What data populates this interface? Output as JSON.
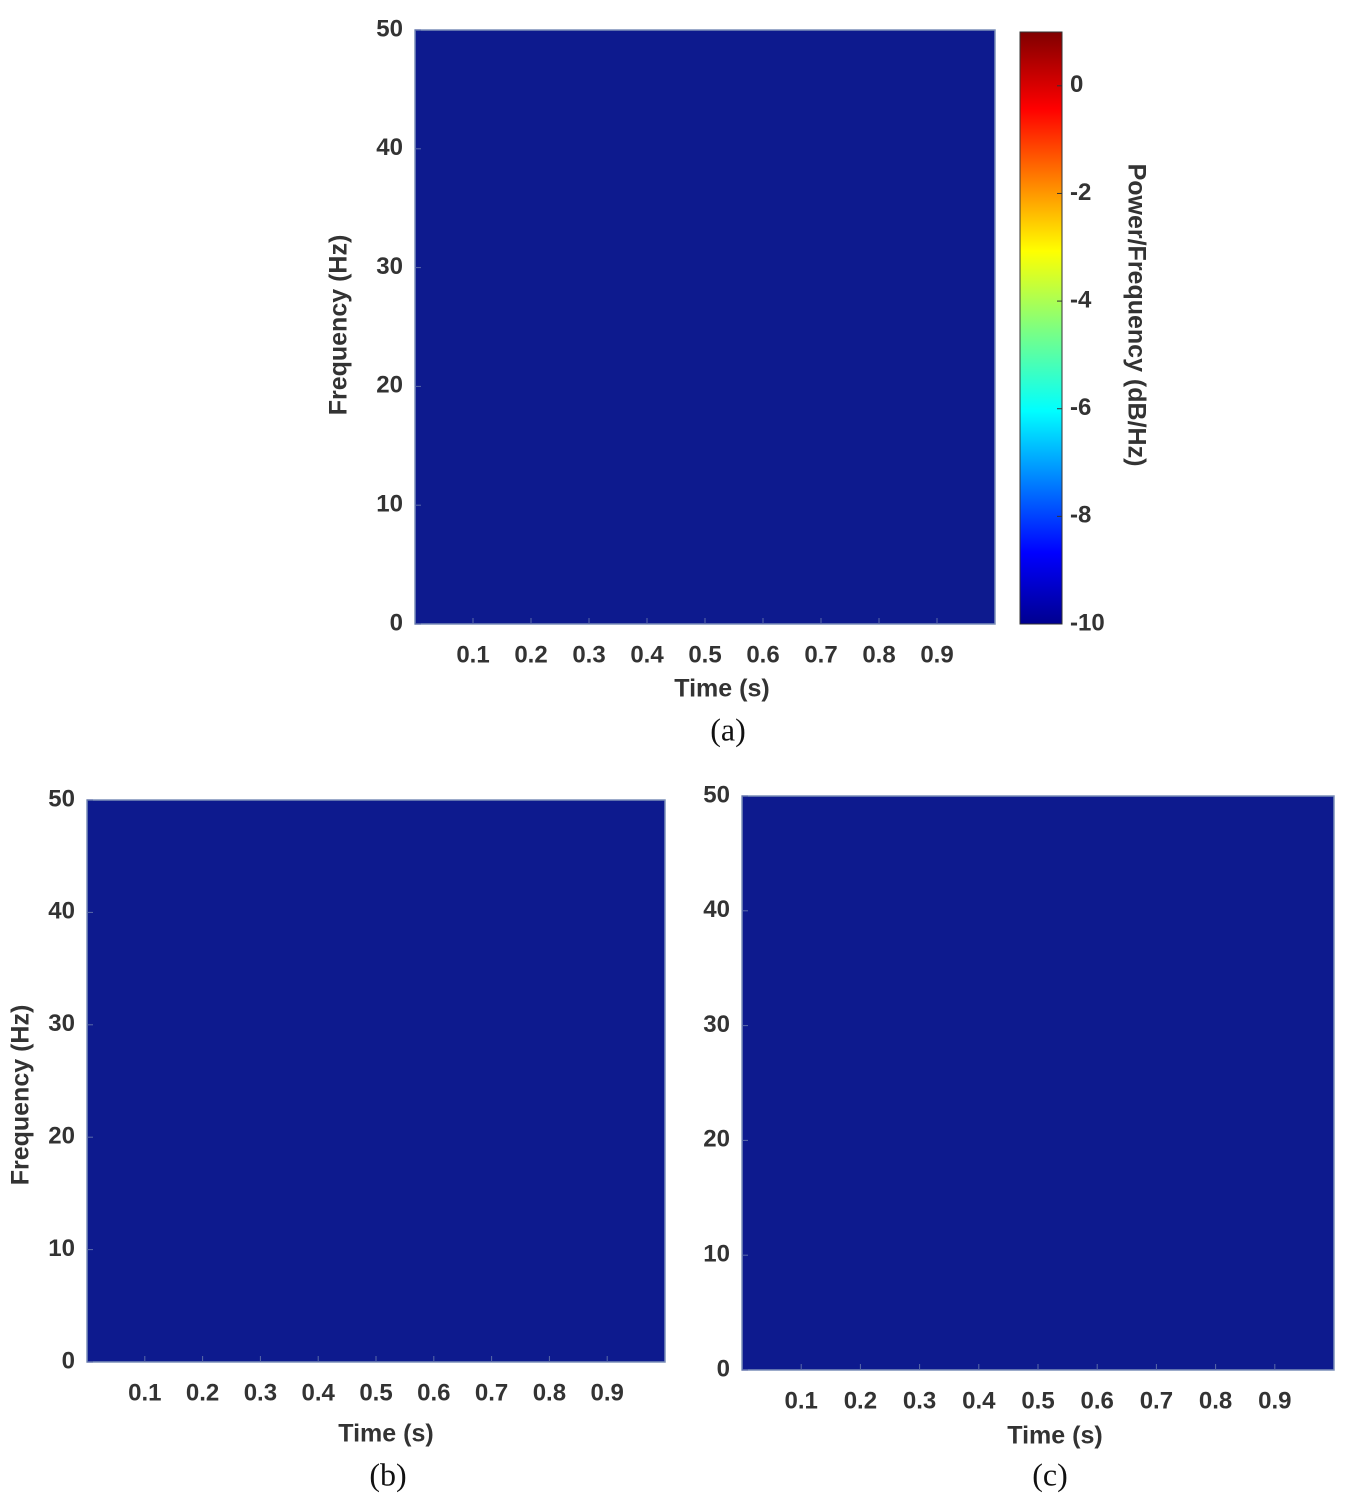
{
  "chart_data": [
    {
      "type": "spectrogram",
      "caption": "(a)",
      "xlabel": "Time (s)",
      "ylabel": "Frequency (Hz)",
      "xlim": [
        0,
        1
      ],
      "xticks": [
        0.1,
        0.2,
        0.3,
        0.4,
        0.5,
        0.6,
        0.7,
        0.8,
        0.9
      ],
      "ylim": [
        0,
        50
      ],
      "yticks": [
        0,
        10,
        20,
        30,
        40,
        50
      ],
      "color": "#0d1a8e",
      "colorbar": {
        "label": "Power/Frequency (dB/Hz)",
        "lim": [
          -10,
          1
        ],
        "ticks": [
          0,
          -2,
          -4,
          -6,
          -8,
          -10
        ]
      }
    },
    {
      "type": "spectrogram",
      "caption": "(b)",
      "xlabel": "Time (s)",
      "ylabel": "Frequency (Hz)",
      "xlim": [
        0,
        1
      ],
      "xticks": [
        0.1,
        0.2,
        0.3,
        0.4,
        0.5,
        0.6,
        0.7,
        0.8,
        0.9
      ],
      "ylim": [
        0,
        50
      ],
      "yticks": [
        0,
        10,
        20,
        30,
        40,
        50
      ],
      "color": "#0d1a8e"
    },
    {
      "type": "spectrogram",
      "caption": "(c)",
      "xlabel": "Time (s)",
      "xlim": [
        0,
        1
      ],
      "xticks": [
        0.1,
        0.2,
        0.3,
        0.4,
        0.5,
        0.6,
        0.7,
        0.8,
        0.9
      ],
      "ylim": [
        0,
        50
      ],
      "yticks": [
        0,
        10,
        20,
        30,
        40,
        50
      ],
      "color": "#0d1a8e"
    }
  ]
}
